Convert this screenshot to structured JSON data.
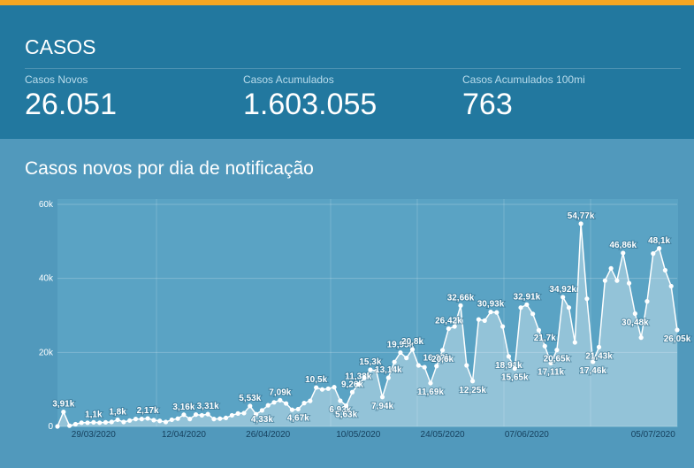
{
  "header": {
    "title": "CASOS",
    "stats": [
      {
        "label": "Casos Novos",
        "value": "26.051"
      },
      {
        "label": "Casos Acumulados",
        "value": "1.603.055"
      },
      {
        "label": "Casos Acumulados 100mi",
        "value": "763"
      }
    ]
  },
  "chart_data": {
    "type": "area",
    "title": "Casos novos por dia de notificação",
    "color": "#ffffff",
    "grid": true,
    "ylim": [
      0,
      60000
    ],
    "yticks": [
      {
        "value": 0,
        "label": "0"
      },
      {
        "value": 20000,
        "label": "20k"
      },
      {
        "value": 40000,
        "label": "40k"
      },
      {
        "value": 60000,
        "label": "60k"
      }
    ],
    "categories": [
      null,
      null,
      null,
      null,
      null,
      null,
      "29/03/2020",
      null,
      null,
      null,
      null,
      null,
      null,
      null,
      null,
      null,
      null,
      null,
      null,
      null,
      null,
      "12/04/2020",
      null,
      null,
      null,
      null,
      null,
      null,
      null,
      null,
      null,
      null,
      null,
      null,
      null,
      "26/04/2020",
      null,
      null,
      null,
      null,
      null,
      null,
      null,
      null,
      null,
      null,
      null,
      null,
      null,
      null,
      "10/05/2020",
      null,
      null,
      null,
      null,
      null,
      null,
      null,
      null,
      null,
      null,
      null,
      null,
      null,
      "24/05/2020",
      null,
      null,
      null,
      null,
      null,
      null,
      null,
      null,
      null,
      null,
      null,
      null,
      null,
      "07/06/2020",
      null,
      null,
      null,
      null,
      null,
      null,
      null,
      null,
      null,
      null,
      null,
      null,
      null,
      null,
      null,
      null,
      null,
      null,
      null,
      null,
      "05/07/2020",
      null,
      null,
      null,
      null
    ],
    "values": [
      0,
      3910,
      200,
      600,
      1000,
      1000,
      1100,
      1000,
      1100,
      1200,
      1800,
      1200,
      1600,
      2000,
      2000,
      2170,
      1700,
      1500,
      1200,
      1800,
      2100,
      3160,
      2000,
      3200,
      3000,
      3310,
      2000,
      2100,
      2300,
      3000,
      3500,
      3600,
      5530,
      3300,
      4330,
      5700,
      6500,
      7090,
      6200,
      4500,
      4670,
      6300,
      6900,
      10500,
      10000,
      10200,
      10600,
      6930,
      5630,
      9260,
      11380,
      13100,
      15300,
      15000,
      7940,
      13140,
      17400,
      19950,
      18500,
      20800,
      16500,
      16000,
      11690,
      16320,
      20600,
      26420,
      27000,
      32660,
      16500,
      12250,
      28900,
      28600,
      30930,
      30800,
      27000,
      18910,
      15650,
      32100,
      32910,
      30400,
      26000,
      21700,
      17110,
      20650,
      34920,
      32100,
      22700,
      54770,
      34500,
      17460,
      21430,
      39400,
      42700,
      39400,
      46860,
      38700,
      30480,
      24000,
      33800,
      46700,
      48100,
      42200,
      37900,
      26051
    ],
    "value_labels": [
      null,
      "3,91k",
      null,
      null,
      null,
      null,
      "1,1k",
      null,
      null,
      null,
      "1,8k",
      null,
      null,
      null,
      null,
      "2,17k",
      null,
      null,
      null,
      null,
      null,
      "3,16k",
      null,
      null,
      null,
      "3,31k",
      null,
      null,
      null,
      null,
      null,
      null,
      "5,53k",
      null,
      "4,33k",
      null,
      null,
      "7,09k",
      null,
      null,
      "4,67k",
      null,
      null,
      "10,5k",
      null,
      null,
      null,
      "6,93k",
      "5,63k",
      "9,26k",
      "11,38k",
      null,
      "15,3k",
      null,
      "7,94k",
      "13,14k",
      null,
      "19,95k",
      null,
      "20,8k",
      null,
      null,
      "11,69k",
      "16,32k",
      "20,6k",
      "26,42k",
      null,
      "32,66k",
      null,
      "12,25k",
      null,
      null,
      "30,93k",
      null,
      null,
      "18,91k",
      "15,65k",
      null,
      "32,91k",
      null,
      null,
      "21,7k",
      "17,11k",
      "20,65k",
      "34,92k",
      null,
      null,
      "54,77k",
      null,
      "17,46k",
      "21,43k",
      null,
      null,
      null,
      "46,86k",
      null,
      "30,48k",
      null,
      null,
      null,
      "48,1k",
      null,
      null,
      "26,05k"
    ]
  }
}
